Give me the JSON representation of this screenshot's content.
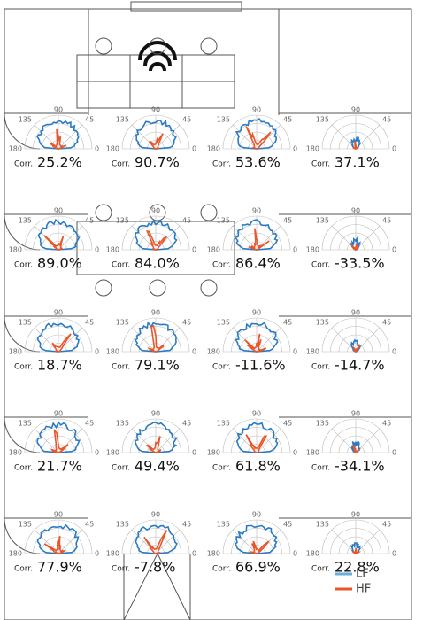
{
  "polar_labels": {
    "a90": "90",
    "a45": "45",
    "a135": "135",
    "a0": "0",
    "a180": "180"
  },
  "corr_label": "Corr.",
  "cells": [
    {
      "corr": "25.2%"
    },
    {
      "corr": "90.7%"
    },
    {
      "corr": "53.6%"
    },
    {
      "corr": "37.1%"
    },
    {
      "corr": "89.0%"
    },
    {
      "corr": "84.0%"
    },
    {
      "corr": "86.4%"
    },
    {
      "corr": "-33.5%"
    },
    {
      "corr": "18.7%"
    },
    {
      "corr": "79.1%"
    },
    {
      "corr": "-11.6%"
    },
    {
      "corr": "-14.7%"
    },
    {
      "corr": "21.7%"
    },
    {
      "corr": "49.4%"
    },
    {
      "corr": "61.8%"
    },
    {
      "corr": "-34.1%"
    },
    {
      "corr": "77.9%"
    },
    {
      "corr": "-7.8%"
    },
    {
      "corr": "66.9%"
    },
    {
      "corr": "22.8%"
    }
  ],
  "legend": {
    "lf": "LF",
    "hf": "HF"
  }
}
